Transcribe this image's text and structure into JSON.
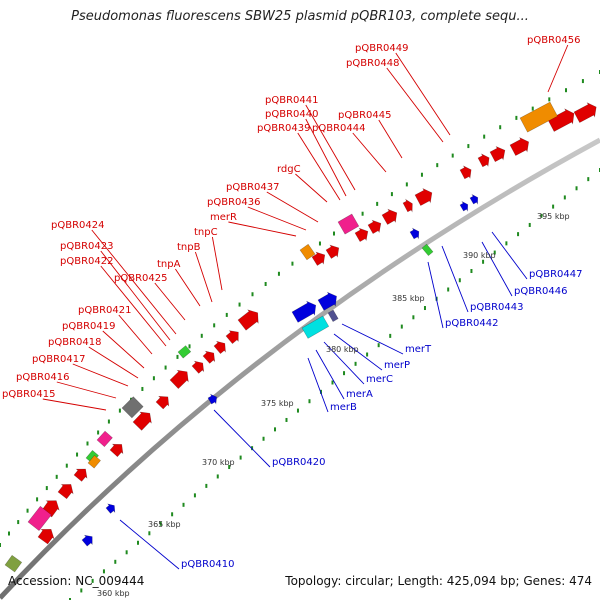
{
  "title": "Pseudomonas fluorescens SBW25 plasmid pQBR103, complete sequ...",
  "footer": {
    "accession": "Accession: NC_009444",
    "summary": "Topology: circular; Length: 425,094 bp; Genes: 474"
  },
  "colors": {
    "forward_label": "#d40000",
    "reverse_label": "#0000cc",
    "backbone": "#808080",
    "tick": "#1f8a1f"
  },
  "scale_labels": [
    "395 kbp",
    "390 kbp",
    "385 kbp",
    "380 kbp",
    "375 kbp",
    "370 kbp",
    "365 kbp",
    "360 kbp"
  ],
  "forward_labels": [
    "pQBR0456",
    "pQBR0449",
    "pQBR0448",
    "pQBR0441",
    "pQBR0440",
    "pQBR0439",
    "pQBR0445",
    "pQBR0444",
    "rdgC",
    "pQBR0437",
    "pQBR0436",
    "merR",
    "tnpC",
    "tnpB",
    "tnpA",
    "pQBR0425",
    "pQBR0424",
    "pQBR0423",
    "pQBR0422",
    "pQBR0421",
    "pQBR0419",
    "pQBR0418",
    "pQBR0417",
    "pQBR0416",
    "pQBR0415"
  ],
  "reverse_labels": [
    "pQBR0447",
    "pQBR0446",
    "pQBR0443",
    "pQBR0442",
    "merT",
    "merP",
    "merC",
    "merA",
    "merB",
    "pQBR0420",
    "pQBR0410"
  ]
}
